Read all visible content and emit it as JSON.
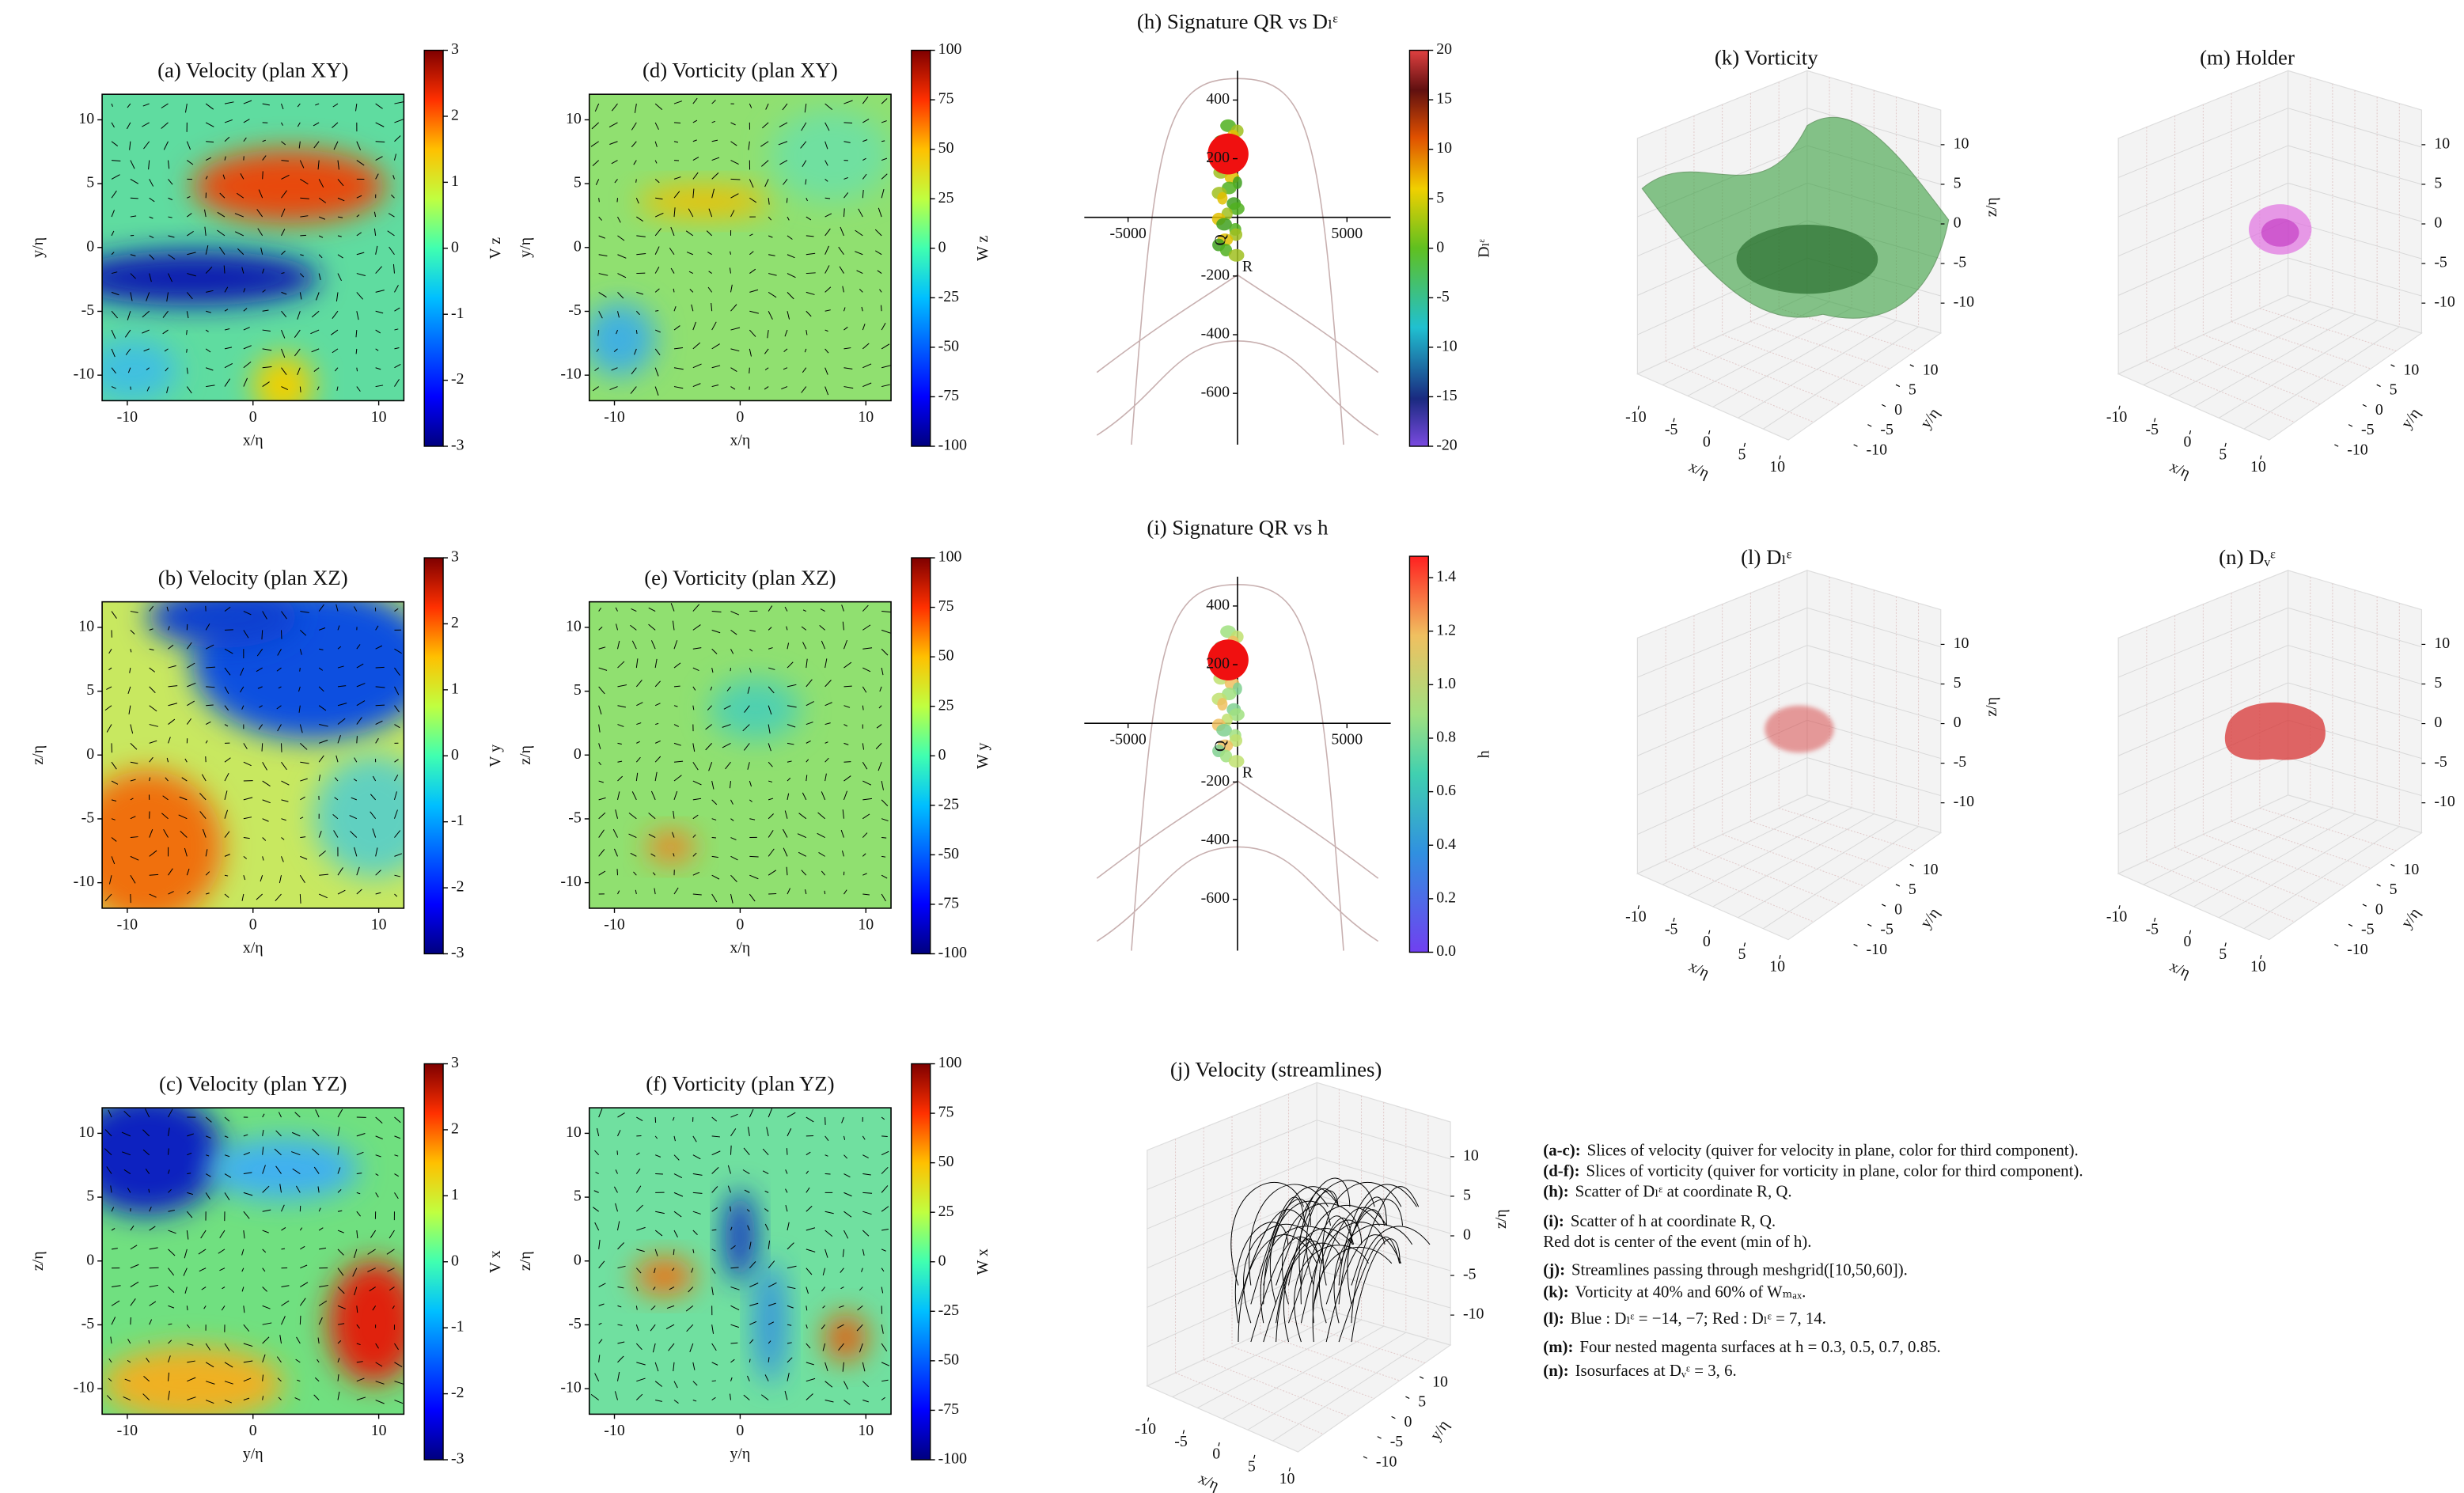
{
  "heatmaps": [
    {
      "title": "(a) Velocity (plan XY)",
      "xlabel": "x/η",
      "ylabel": "y/η",
      "xlim": [
        -12,
        12
      ],
      "ylim": [
        -12,
        12
      ],
      "xticks": [
        -10,
        0,
        10
      ],
      "yticks": [
        -10,
        -5,
        0,
        5,
        10
      ],
      "colorbar": {
        "label": "V z",
        "lim": [
          -3,
          3
        ],
        "ticks": [
          -3,
          -2,
          -1,
          0,
          1,
          2,
          3
        ]
      }
    },
    {
      "title": "(d) Vorticity (plan XY)",
      "xlabel": "x/η",
      "ylabel": "y/η",
      "xlim": [
        -12,
        12
      ],
      "ylim": [
        -12,
        12
      ],
      "xticks": [
        -10,
        0,
        10
      ],
      "yticks": [
        -10,
        -5,
        0,
        5,
        10
      ],
      "colorbar": {
        "label": "W z",
        "lim": [
          -100,
          100
        ],
        "ticks": [
          -100,
          -75,
          -50,
          -25,
          0,
          25,
          50,
          75,
          100
        ]
      }
    },
    {
      "title": "(b) Velocity (plan XZ)",
      "xlabel": "x/η",
      "ylabel": "z/η",
      "xlim": [
        -12,
        12
      ],
      "ylim": [
        -12,
        12
      ],
      "xticks": [
        -10,
        0,
        10
      ],
      "yticks": [
        -10,
        -5,
        0,
        5,
        10
      ],
      "colorbar": {
        "label": "V y",
        "lim": [
          -3,
          3
        ],
        "ticks": [
          -3,
          -2,
          -1,
          0,
          1,
          2,
          3
        ]
      }
    },
    {
      "title": "(e) Vorticity (plan XZ)",
      "xlabel": "x/η",
      "ylabel": "z/η",
      "xlim": [
        -12,
        12
      ],
      "ylim": [
        -12,
        12
      ],
      "xticks": [
        -10,
        0,
        10
      ],
      "yticks": [
        -10,
        -5,
        0,
        5,
        10
      ],
      "colorbar": {
        "label": "W y",
        "lim": [
          -100,
          100
        ],
        "ticks": [
          -100,
          -75,
          -50,
          -25,
          0,
          25,
          50,
          75,
          100
        ]
      }
    },
    {
      "title": "(c) Velocity (plan YZ)",
      "xlabel": "y/η",
      "ylabel": "z/η",
      "xlim": [
        -12,
        12
      ],
      "ylim": [
        -12,
        12
      ],
      "xticks": [
        -10,
        0,
        10
      ],
      "yticks": [
        -10,
        -5,
        0,
        5,
        10
      ],
      "colorbar": {
        "label": "V x",
        "lim": [
          -3,
          3
        ],
        "ticks": [
          -3,
          -2,
          -1,
          0,
          1,
          2,
          3
        ]
      }
    },
    {
      "title": "(f) Vorticity (plan YZ)",
      "xlabel": "y/η",
      "ylabel": "z/η",
      "xlim": [
        -12,
        12
      ],
      "ylim": [
        -12,
        12
      ],
      "xticks": [
        -10,
        0,
        10
      ],
      "yticks": [
        -10,
        -5,
        0,
        5,
        10
      ],
      "colorbar": {
        "label": "W x",
        "lim": [
          -100,
          100
        ],
        "ticks": [
          -100,
          -75,
          -50,
          -25,
          0,
          25,
          50,
          75,
          100
        ]
      }
    }
  ],
  "scatters": [
    {
      "title": "(h) Signature QR vs Dₗᵋ",
      "xlabel": "R",
      "ylabel": "Q",
      "xlim": [
        -7000,
        7000
      ],
      "ylim": [
        -775,
        500
      ],
      "xticks": [
        -5000,
        5000
      ],
      "yticks": [
        -600,
        -400,
        -200,
        200,
        400
      ],
      "colorbar": {
        "label": "Dₗᵋ",
        "lim": [
          -20,
          20
        ],
        "ticks": [
          -20,
          -15,
          -10,
          -5,
          0,
          5,
          10,
          15,
          20
        ]
      }
    },
    {
      "title": "(i) Signature QR vs h",
      "xlabel": "R",
      "ylabel": "Q",
      "xlim": [
        -7000,
        7000
      ],
      "ylim": [
        -775,
        500
      ],
      "xticks": [
        -5000,
        5000
      ],
      "yticks": [
        -600,
        -400,
        -200,
        200,
        400
      ],
      "colorbar": {
        "label": "h",
        "lim": [
          0,
          1.48
        ],
        "ticks": [
          {
            "value": 0,
            "label": "0.0"
          },
          0.2,
          0.4,
          0.6,
          0.8,
          {
            "value": 1,
            "label": "1.0"
          },
          1.2,
          1.4
        ]
      }
    }
  ],
  "views3d": [
    {
      "title": "(k) Vorticity",
      "xlabel": "x/η",
      "ylabel": "y/η",
      "zlabel": "z/η",
      "xlim": [
        -12,
        12
      ],
      "ylim": [
        -12,
        12
      ],
      "zlim": [
        -12,
        12
      ],
      "xticks": [
        -10,
        -5,
        0,
        5,
        10
      ],
      "yticks": [
        -10,
        -5,
        0,
        5,
        10
      ],
      "zticks": [
        -10,
        -5,
        0,
        5,
        10
      ]
    },
    {
      "title": "(m) Holder",
      "xlabel": "x/η",
      "ylabel": "y/η",
      "zlabel": "z/η",
      "xlim": [
        -12,
        12
      ],
      "ylim": [
        -12,
        12
      ],
      "zlim": [
        -12,
        12
      ],
      "xticks": [
        -10,
        -5,
        0,
        5,
        10
      ],
      "yticks": [
        -10,
        -5,
        0,
        5,
        10
      ],
      "zticks": [
        -10,
        -5,
        0,
        5,
        10
      ]
    },
    {
      "title": "(l) Dₗᵋ",
      "xlabel": "x/η",
      "ylabel": "y/η",
      "zlabel": "z/η",
      "xlim": [
        -12,
        12
      ],
      "ylim": [
        -12,
        12
      ],
      "zlim": [
        -12,
        12
      ],
      "xticks": [
        -10,
        -5,
        0,
        5,
        10
      ],
      "yticks": [
        -10,
        -5,
        0,
        5,
        10
      ],
      "zticks": [
        -10,
        -5,
        0,
        5,
        10
      ]
    },
    {
      "title": "(n) Dᵥᵋ",
      "xlabel": "x/η",
      "ylabel": "y/η",
      "zlabel": "z/η",
      "xlim": [
        -12,
        12
      ],
      "ylim": [
        -12,
        12
      ],
      "zlim": [
        -12,
        12
      ],
      "xticks": [
        -10,
        -5,
        0,
        5,
        10
      ],
      "yticks": [
        -10,
        -5,
        0,
        5,
        10
      ],
      "zticks": [
        -10,
        -5,
        0,
        5,
        10
      ]
    },
    {
      "title": "(j) Velocity (streamlines)",
      "xlabel": "x/η",
      "ylabel": "y/η",
      "zlabel": "z/η",
      "xlim": [
        -12,
        12
      ],
      "ylim": [
        -12,
        12
      ],
      "zlim": [
        -12,
        12
      ],
      "xticks": [
        -10,
        -5,
        0,
        5,
        10
      ],
      "yticks": [
        -10,
        -5,
        0,
        5,
        10
      ],
      "zticks": [
        -10,
        -5,
        0,
        5,
        10
      ]
    }
  ],
  "caption": [
    {
      "key": "(a-c):",
      "text": "Slices of velocity (quiver for velocity in plane, color for third component)."
    },
    {
      "key": "(d-f):",
      "text": "Slices of vorticity (quiver for vorticity in plane, color for third component)."
    },
    {
      "key": "(h):",
      "text": "Scatter of Dₗᵋ at coordinate R, Q."
    },
    {
      "key": "(i):",
      "text": "Scatter of h at coordinate R, Q."
    },
    {
      "text": "Red dot is center of the event (min of h)."
    },
    {
      "key": "(j):",
      "text": "Streamlines passing through meshgrid([10,50,60])."
    },
    {
      "key": "(k):",
      "text": "Vorticity at 40% and 60% of Wₘₐₓ."
    },
    {
      "key": "(l):",
      "text": "Blue : Dₗᵋ = −14, −7; Red : Dₗᵋ = 7, 14."
    },
    {
      "key": "(m):",
      "text": "Four nested magenta surfaces at h = 0.3, 0.5, 0.7, 0.85."
    },
    {
      "key": "(n):",
      "text": "Isosurfaces at Dᵥᵋ = 3, 6."
    }
  ]
}
